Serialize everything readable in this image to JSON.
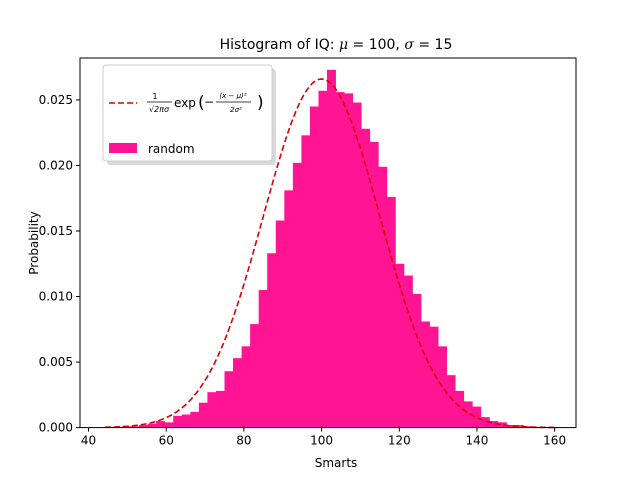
{
  "chart_data": {
    "type": "bar",
    "title": "Histogram of IQ: μ = 100, σ = 15",
    "title_parts": [
      "Histogram of IQ: ",
      "μ",
      " = 100, ",
      "σ",
      " = 15"
    ],
    "xlabel": "Smarts",
    "ylabel": "Probability",
    "xlim": [
      37.8,
      165.5
    ],
    "ylim": [
      0,
      0.0282
    ],
    "xticks": [
      40,
      60,
      80,
      100,
      120,
      140,
      160
    ],
    "xtick_labels": [
      "40",
      "60",
      "80",
      "100",
      "120",
      "140",
      "160"
    ],
    "yticks": [
      0,
      0.005,
      0.01,
      0.015,
      0.02,
      0.025
    ],
    "ytick_labels": [
      "0.000",
      "0.005",
      "0.010",
      "0.015",
      "0.020",
      "0.025"
    ],
    "grid": false,
    "legend_position": "top-left",
    "histogram": {
      "name": "random",
      "color": "#ff1493",
      "bin_edges": [
        44.2,
        46.4,
        48.6,
        50.8,
        53.0,
        55.2,
        57.4,
        59.6,
        61.8,
        64.0,
        66.2,
        68.4,
        70.6,
        72.8,
        75.0,
        77.2,
        79.4,
        81.6,
        83.8,
        86.0,
        88.2,
        90.4,
        92.6,
        94.8,
        97.0,
        99.2,
        101.4,
        103.6,
        105.8,
        108.0,
        110.2,
        112.4,
        114.6,
        116.8,
        119.0,
        121.2,
        123.4,
        125.6,
        127.8,
        130.0,
        132.2,
        134.4,
        136.6,
        138.8,
        141.0,
        143.2,
        145.4,
        147.6,
        149.8,
        152.0,
        154.2,
        156.4,
        158.6,
        160.8
      ],
      "values": [
        5e-05,
        5e-05,
        0.0001,
        0.0001,
        0.0002,
        0.0003,
        0.0005,
        0.0004,
        0.0009,
        0.001,
        0.0012,
        0.0019,
        0.0027,
        0.0028,
        0.0043,
        0.0053,
        0.0062,
        0.0079,
        0.0105,
        0.0133,
        0.0158,
        0.0181,
        0.0202,
        0.0223,
        0.0245,
        0.0257,
        0.0273,
        0.0256,
        0.0255,
        0.0248,
        0.0228,
        0.0218,
        0.0199,
        0.0176,
        0.0125,
        0.0116,
        0.0102,
        0.0081,
        0.0077,
        0.0062,
        0.004,
        0.0028,
        0.002,
        0.0016,
        0.0008,
        0.0005,
        0.0004,
        0.0002,
        0.0002,
        0.0001,
        5e-05,
        5e-05,
        5e-05
      ]
    },
    "curve": {
      "type": "line",
      "style": "dashed",
      "color": "#dd0000",
      "mu": 100,
      "sigma": 15,
      "x_range": [
        44.2,
        159.8
      ]
    },
    "legend": {
      "curve_formula": {
        "frac_num": "1",
        "frac_den": "√2πσ",
        "func": "exp",
        "lparen": "(",
        "sign": "−",
        "inner_num": "(x − μ)²",
        "inner_den": "2σ²",
        "rparen": ")"
      },
      "hist_label": "random"
    }
  }
}
